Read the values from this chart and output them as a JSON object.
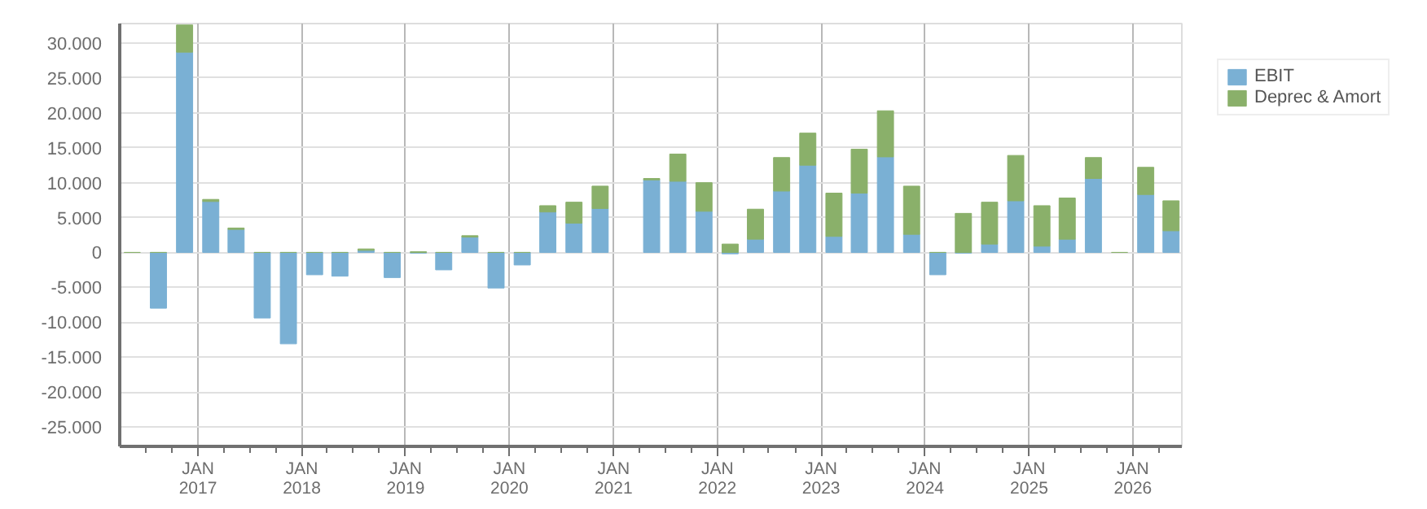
{
  "chart_data": {
    "type": "bar",
    "stacked": true,
    "x": [
      "2016-05-15",
      "2016-08-15",
      "2016-11-15",
      "2017-02-15",
      "2017-05-15",
      "2017-08-15",
      "2017-11-15",
      "2018-02-15",
      "2018-05-15",
      "2018-08-15",
      "2018-11-15",
      "2019-02-15",
      "2019-05-15",
      "2019-08-15",
      "2019-11-15",
      "2020-02-15",
      "2020-05-15",
      "2020-08-15",
      "2020-11-15",
      "2021-02-15",
      "2021-05-15",
      "2021-08-15",
      "2021-11-15",
      "2022-02-15",
      "2022-05-15",
      "2022-08-15",
      "2022-11-15",
      "2023-02-15",
      "2023-05-15",
      "2023-08-15",
      "2023-11-15",
      "2024-02-15",
      "2024-05-15",
      "2024-08-15",
      "2024-11-15",
      "2025-02-15",
      "2025-05-15",
      "2025-08-15",
      "2025-11-15",
      "2026-02-15",
      "2026-05-15"
    ],
    "series": [
      {
        "name": "EBIT",
        "color": "#7ab0d4",
        "values": [
          null,
          -8000,
          28700,
          7300,
          3300,
          -9400,
          -13100,
          -3200,
          -3400,
          300,
          -3600,
          -100,
          -2500,
          2200,
          -5100,
          -1800,
          5800,
          4200,
          6300,
          null,
          10400,
          10200,
          5900,
          -200,
          1900,
          8800,
          12500,
          2300,
          8500,
          13700,
          2600,
          -3200,
          -100,
          1200,
          7400,
          900,
          1900,
          10600,
          null,
          8300,
          3100
        ]
      },
      {
        "name": "Deprec & Amort",
        "color": "#8ab06a",
        "values": [
          0,
          0,
          3900,
          300,
          200,
          0,
          0,
          0,
          0,
          200,
          0,
          100,
          0,
          200,
          0,
          0,
          900,
          3000,
          3200,
          null,
          200,
          3900,
          4100,
          1200,
          4300,
          4800,
          4600,
          6200,
          6300,
          6600,
          6900,
          0,
          5600,
          6000,
          6500,
          5800,
          5900,
          3000,
          0,
          3900,
          4300
        ]
      }
    ],
    "xlim": [
      "2016-04-01",
      "2026-06-22"
    ],
    "xticks": [
      {
        "value": "2016-07-01",
        "label": null
      },
      {
        "value": "2016-10-01",
        "label": null
      },
      {
        "value": "2017-01-01",
        "label": "JAN\n2017"
      },
      {
        "value": "2017-04-01",
        "label": null
      },
      {
        "value": "2017-07-01",
        "label": null
      },
      {
        "value": "2017-10-01",
        "label": null
      },
      {
        "value": "2018-01-01",
        "label": "JAN\n2018"
      },
      {
        "value": "2018-04-01",
        "label": null
      },
      {
        "value": "2018-07-01",
        "label": null
      },
      {
        "value": "2018-10-01",
        "label": null
      },
      {
        "value": "2019-01-01",
        "label": "JAN\n2019"
      },
      {
        "value": "2019-04-01",
        "label": null
      },
      {
        "value": "2019-07-01",
        "label": null
      },
      {
        "value": "2019-10-01",
        "label": null
      },
      {
        "value": "2020-01-01",
        "label": "JAN\n2020"
      },
      {
        "value": "2020-04-01",
        "label": null
      },
      {
        "value": "2020-07-01",
        "label": null
      },
      {
        "value": "2020-10-01",
        "label": null
      },
      {
        "value": "2021-01-01",
        "label": "JAN\n2021"
      },
      {
        "value": "2021-04-01",
        "label": null
      },
      {
        "value": "2021-07-01",
        "label": null
      },
      {
        "value": "2021-10-01",
        "label": null
      },
      {
        "value": "2022-01-01",
        "label": "JAN\n2022"
      },
      {
        "value": "2022-04-01",
        "label": null
      },
      {
        "value": "2022-07-01",
        "label": null
      },
      {
        "value": "2022-10-01",
        "label": null
      },
      {
        "value": "2023-01-01",
        "label": "JAN\n2023"
      },
      {
        "value": "2023-04-01",
        "label": null
      },
      {
        "value": "2023-07-01",
        "label": null
      },
      {
        "value": "2023-10-01",
        "label": null
      },
      {
        "value": "2024-01-01",
        "label": "JAN\n2024"
      },
      {
        "value": "2024-04-01",
        "label": null
      },
      {
        "value": "2024-07-01",
        "label": null
      },
      {
        "value": "2024-10-01",
        "label": null
      },
      {
        "value": "2025-01-01",
        "label": "JAN\n2025"
      },
      {
        "value": "2025-04-01",
        "label": null
      },
      {
        "value": "2025-07-01",
        "label": null
      },
      {
        "value": "2025-10-01",
        "label": null
      },
      {
        "value": "2026-01-01",
        "label": "JAN\n2026"
      },
      {
        "value": "2026-04-01",
        "label": null
      }
    ],
    "ylim": [
      -27800,
      32800
    ],
    "yticks": [
      {
        "value": -25000,
        "label": "-25.000"
      },
      {
        "value": -20000,
        "label": "-20.000"
      },
      {
        "value": -15000,
        "label": "-15.000"
      },
      {
        "value": -10000,
        "label": "-10.000"
      },
      {
        "value": -5000,
        "label": "-5.000"
      },
      {
        "value": 0,
        "label": "0"
      },
      {
        "value": 5000,
        "label": "5.000"
      },
      {
        "value": 10000,
        "label": "10.000"
      },
      {
        "value": 15000,
        "label": "15.000"
      },
      {
        "value": 20000,
        "label": "20.000"
      },
      {
        "value": 25000,
        "label": "25.000"
      },
      {
        "value": 30000,
        "label": "30.000"
      }
    ],
    "grid": true,
    "legend": "top right"
  }
}
